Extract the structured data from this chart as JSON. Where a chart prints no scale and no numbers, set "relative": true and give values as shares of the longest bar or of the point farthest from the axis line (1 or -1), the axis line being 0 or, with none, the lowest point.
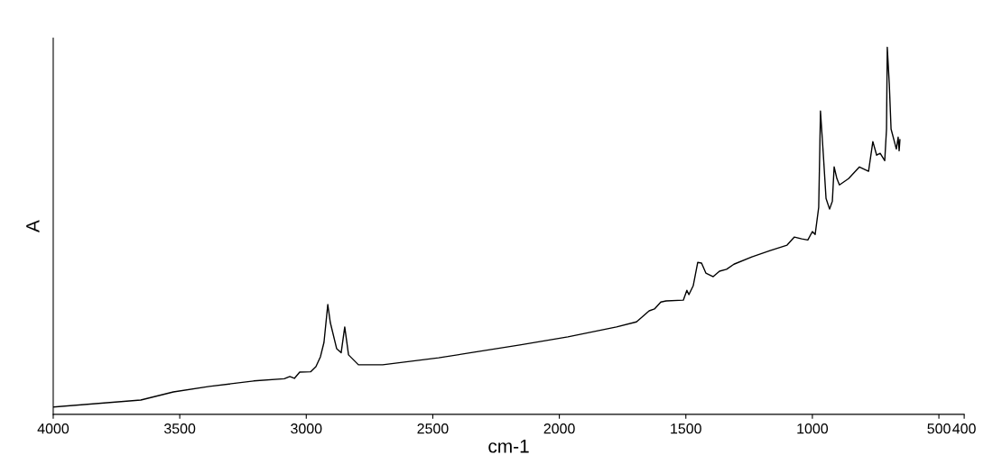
{
  "chart_data": {
    "type": "line",
    "relative": true,
    "xlabel": "cm-1",
    "ylabel": "A",
    "tick_labels": "x",
    "grid": false,
    "legend": false,
    "xlim": [
      4000,
      400
    ],
    "xticks": [
      4000,
      3500,
      3000,
      2500,
      2000,
      1500,
      1000,
      500,
      400
    ],
    "series": [
      {
        "color": "#000000",
        "x": [
          3998,
          3654,
          3525,
          3383,
          3208,
          3087,
          3065,
          3047,
          3026,
          2983,
          2962,
          2944,
          2930,
          2915,
          2905,
          2880,
          2862,
          2848,
          2833,
          2794,
          2698,
          2477,
          2348,
          2156,
          1966,
          1774,
          1695,
          1645,
          1624,
          1599,
          1578,
          1510,
          1496,
          1488,
          1471,
          1453,
          1438,
          1421,
          1392,
          1367,
          1339,
          1310,
          1239,
          1167,
          1100,
          1071,
          1042,
          1018,
          1000,
          989,
          975,
          971,
          968,
          957,
          946,
          932,
          921,
          914,
          903,
          893,
          857,
          814,
          778,
          761,
          746,
          732,
          714,
          707,
          704,
          696,
          689,
          671,
          668,
          661,
          657,
          654
        ],
        "values": [
          0.02,
          0.039,
          0.061,
          0.076,
          0.091,
          0.097,
          0.103,
          0.098,
          0.115,
          0.116,
          0.13,
          0.157,
          0.196,
          0.299,
          0.25,
          0.179,
          0.168,
          0.238,
          0.162,
          0.135,
          0.135,
          0.154,
          0.168,
          0.189,
          0.211,
          0.238,
          0.252,
          0.282,
          0.287,
          0.306,
          0.309,
          0.311,
          0.338,
          0.326,
          0.35,
          0.414,
          0.412,
          0.385,
          0.375,
          0.39,
          0.395,
          0.409,
          0.429,
          0.446,
          0.461,
          0.483,
          0.478,
          0.475,
          0.498,
          0.49,
          0.564,
          0.711,
          0.826,
          0.711,
          0.588,
          0.559,
          0.581,
          0.674,
          0.642,
          0.625,
          0.642,
          0.674,
          0.662,
          0.743,
          0.706,
          0.711,
          0.691,
          0.777,
          1.0,
          0.9,
          0.777,
          0.73,
          0.723,
          0.755,
          0.718,
          0.748
        ]
      }
    ]
  }
}
